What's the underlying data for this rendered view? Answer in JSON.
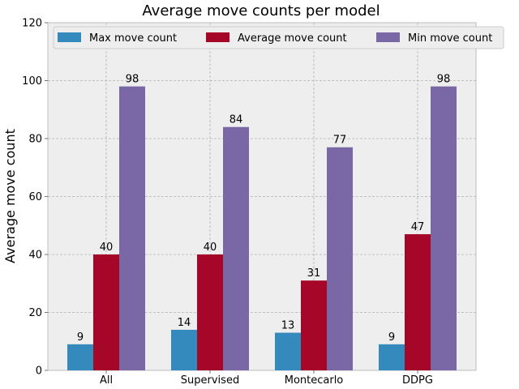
{
  "chart_data": {
    "type": "bar",
    "title": "Average move counts per model",
    "xlabel": "",
    "ylabel": "Average move count",
    "categories": [
      "All",
      "Supervised",
      "Montecarlo",
      "DDPG"
    ],
    "series": [
      {
        "name": "Max move count",
        "color": "#348abd",
        "values": [
          9,
          14,
          13,
          9
        ]
      },
      {
        "name": "Average move count",
        "color": "#a60628",
        "values": [
          40,
          40,
          31,
          47
        ]
      },
      {
        "name": "Min move count",
        "color": "#7a68a6",
        "values": [
          98,
          84,
          77,
          98
        ]
      }
    ],
    "ylim": [
      0,
      120
    ],
    "yticks": [
      0,
      20,
      40,
      60,
      80,
      100,
      120
    ],
    "grid": true,
    "legend_position": "top"
  }
}
